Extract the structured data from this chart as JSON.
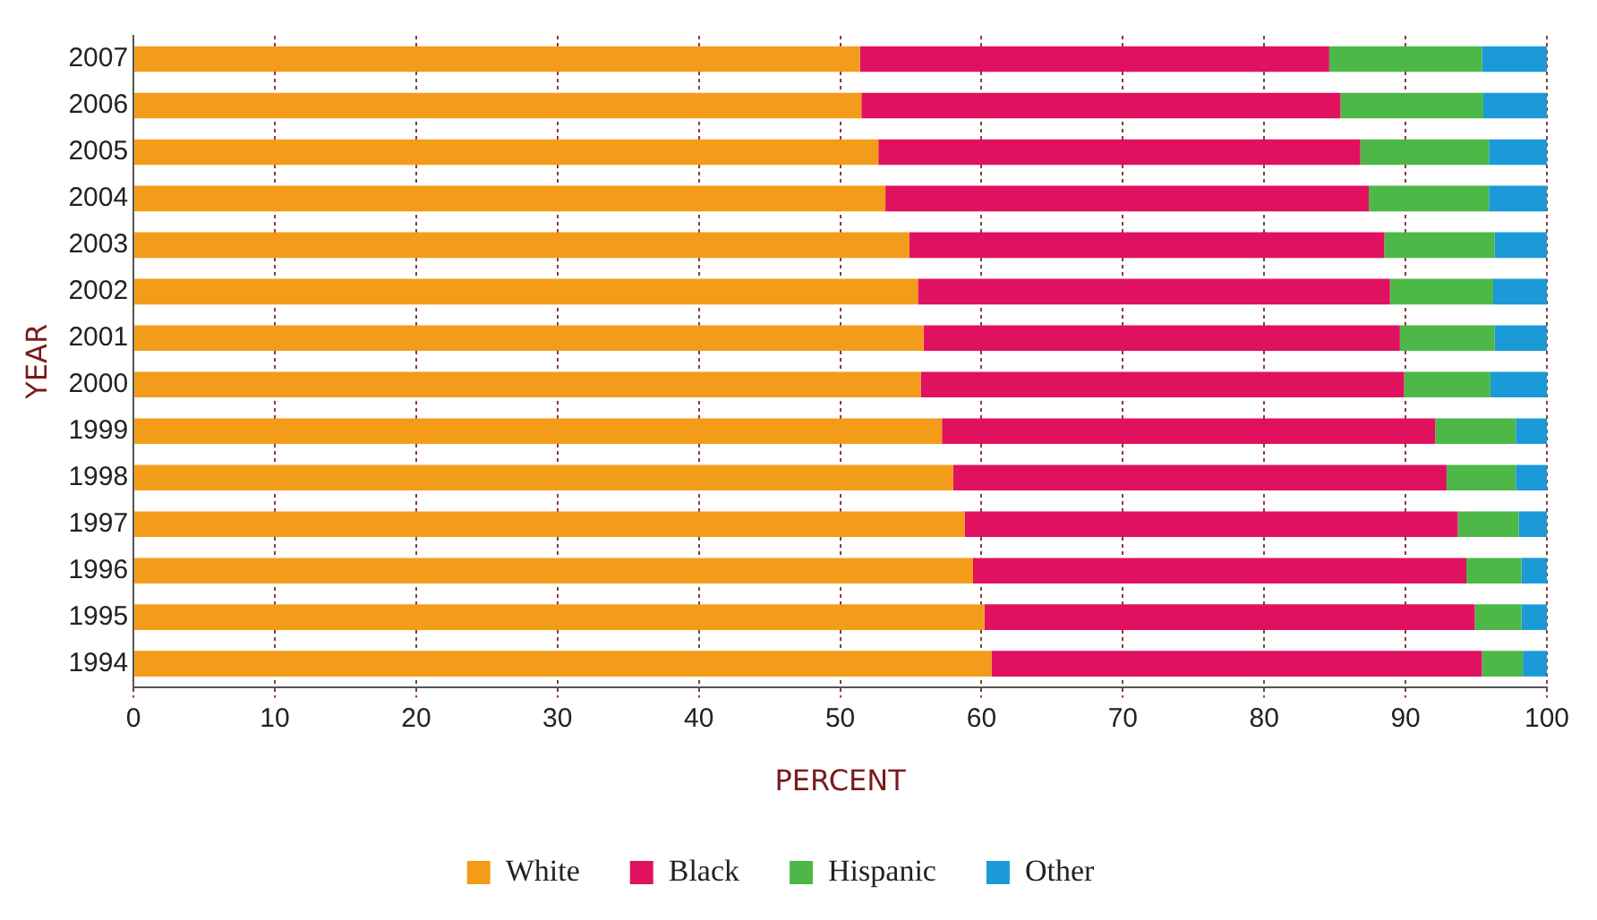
{
  "chart_data": {
    "type": "bar",
    "orientation": "horizontal",
    "stacked": true,
    "xlabel": "PERCENT",
    "ylabel": "YEAR",
    "categories": [
      "2007",
      "2006",
      "2005",
      "2004",
      "2003",
      "2002",
      "2001",
      "2000",
      "1999",
      "1998",
      "1997",
      "1996",
      "1995",
      "1994"
    ],
    "series": [
      {
        "name": "White",
        "color": "#f39c1a",
        "values": [
          51.4,
          51.5,
          52.7,
          53.2,
          54.9,
          55.5,
          55.9,
          55.7,
          57.2,
          58.0,
          58.8,
          59.4,
          60.2,
          60.7
        ]
      },
      {
        "name": "Black",
        "color": "#e0115f",
        "values": [
          33.2,
          33.9,
          34.1,
          34.2,
          33.6,
          33.4,
          33.7,
          34.2,
          34.9,
          34.9,
          34.9,
          34.9,
          34.7,
          34.7
        ]
      },
      {
        "name": "Hispanic",
        "color": "#4db848",
        "values": [
          10.8,
          10.1,
          9.1,
          8.5,
          7.8,
          7.3,
          6.7,
          6.1,
          5.7,
          4.9,
          4.3,
          3.9,
          3.3,
          2.9
        ]
      },
      {
        "name": "Other",
        "color": "#1a9ad6",
        "values": [
          4.6,
          4.5,
          4.1,
          4.1,
          3.7,
          3.8,
          3.7,
          4.0,
          2.2,
          2.2,
          2.0,
          1.8,
          1.8,
          1.7
        ]
      }
    ],
    "xlim": [
      0,
      100
    ],
    "xticks": [
      0,
      10,
      20,
      30,
      40,
      50,
      60,
      70,
      80,
      90,
      100
    ],
    "grid": "x",
    "legend": "bottom"
  }
}
